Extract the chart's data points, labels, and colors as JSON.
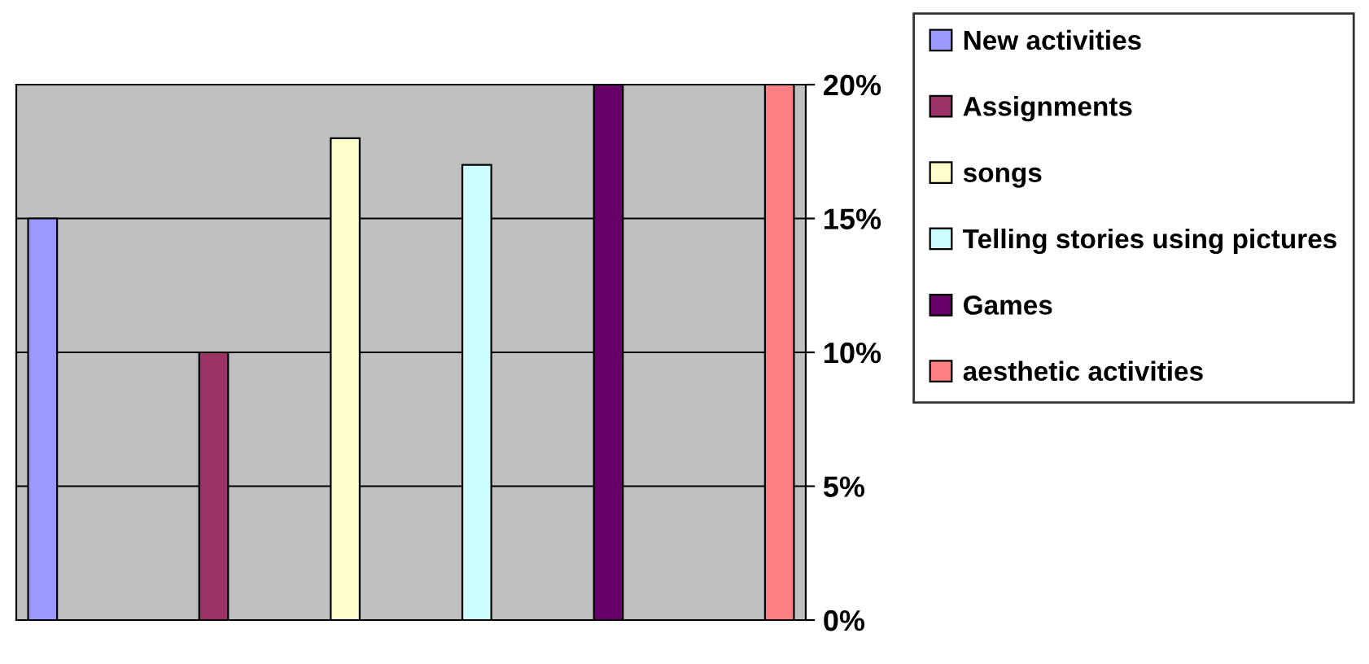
{
  "chart_data": {
    "type": "bar",
    "categories": [
      null
    ],
    "series": [
      {
        "name": "New activities",
        "color": "#9999ff",
        "values": [
          15
        ]
      },
      {
        "name": "Assignments",
        "color": "#993366",
        "values": [
          10
        ]
      },
      {
        "name": "songs",
        "color": "#ffffcc",
        "values": [
          18
        ]
      },
      {
        "name": "Telling stories using pictures",
        "color": "#ccffff",
        "values": [
          17
        ]
      },
      {
        "name": "Games",
        "color": "#660066",
        "values": [
          20
        ]
      },
      {
        "name": "aesthetic activities",
        "color": "#ff8080",
        "values": [
          20
        ]
      }
    ],
    "ylim": [
      0,
      20
    ],
    "yticks": [
      {
        "value": 0,
        "label": "0%"
      },
      {
        "value": 5,
        "label": "5%"
      },
      {
        "value": 10,
        "label": "10%"
      },
      {
        "value": 15,
        "label": "15%"
      },
      {
        "value": 20,
        "label": "20%"
      }
    ],
    "grid": "y",
    "legend": "right"
  }
}
